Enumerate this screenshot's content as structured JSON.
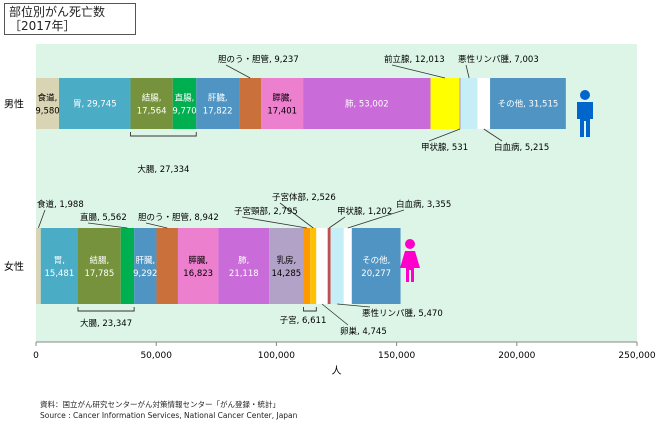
{
  "title": "部位別がん死亡数",
  "subtitle": "［2017年］",
  "source_line1": "資料：国立がん研究センターがん対策情報センター「がん登録・統計」",
  "source_line2": "Source : Cancer Information Services, National Cancer Center, Japan",
  "chart_data": {
    "type": "bar",
    "orientation": "horizontal",
    "stacked": true,
    "xlabel": "人",
    "xlim": [
      0,
      250000
    ],
    "xticks": [
      0,
      50000,
      100000,
      150000,
      200000,
      250000
    ],
    "xtick_labels": [
      "0",
      "50,000",
      "100,000",
      "150,000",
      "200,000",
      "250,000"
    ],
    "grid": false,
    "background_color": "#dcf5e6",
    "categories": [
      "男性",
      "女性"
    ],
    "series": [
      {
        "category": "男性",
        "segments": [
          {
            "label": "食道",
            "value": 9580,
            "value_text": "9,580",
            "color": "#d9d4b4"
          },
          {
            "label": "胃",
            "value": 29745,
            "value_text": "29,745",
            "color": "#4bacc6"
          },
          {
            "label": "結腸",
            "value": 17564,
            "value_text": "17,564",
            "color": "#76923c"
          },
          {
            "label": "直腸",
            "value": 9770,
            "value_text": "9,770",
            "color": "#00b050"
          },
          {
            "label": "肝臓",
            "value": 17822,
            "value_text": "17,822",
            "color": "#4f94c2"
          },
          {
            "label": "胆のう・胆管",
            "value": 9237,
            "value_text": "9,237",
            "color": "#c9703b"
          },
          {
            "label": "膵臓",
            "value": 17401,
            "value_text": "17,401",
            "color": "#ec7fce"
          },
          {
            "label": "肺",
            "value": 53002,
            "value_text": "53,002",
            "color": "#c96bd9"
          },
          {
            "label": "前立腺",
            "value": 12013,
            "value_text": "12,013",
            "color": "#ffff00"
          },
          {
            "label": "甲状腺",
            "value": 531,
            "value_text": "531",
            "color": "#b3a2c7"
          },
          {
            "label": "悪性リンパ腫",
            "value": 7003,
            "value_text": "7,003",
            "color": "#c5eef7"
          },
          {
            "label": "白血病",
            "value": 5215,
            "value_text": "5,215",
            "color": "#ffffff"
          },
          {
            "label": "その他",
            "value": 31515,
            "value_text": "31,515",
            "color": "#4f94c2"
          }
        ],
        "annotations": [
          {
            "text": "大腸, 27,334"
          }
        ]
      },
      {
        "category": "女性",
        "segments": [
          {
            "label": "食道",
            "value": 1988,
            "value_text": "1,988",
            "color": "#d9d4b4"
          },
          {
            "label": "胃",
            "value": 15481,
            "value_text": "15,481",
            "color": "#4bacc6"
          },
          {
            "label": "結腸",
            "value": 17785,
            "value_text": "17,785",
            "color": "#76923c"
          },
          {
            "label": "直腸",
            "value": 5562,
            "value_text": "5,562",
            "color": "#00b050"
          },
          {
            "label": "肝臓",
            "value": 9292,
            "value_text": "9,292",
            "color": "#4f94c2"
          },
          {
            "label": "胆のう・胆管",
            "value": 8942,
            "value_text": "8,942",
            "color": "#c9703b"
          },
          {
            "label": "膵臓",
            "value": 16823,
            "value_text": "16,823",
            "color": "#ec7fce"
          },
          {
            "label": "肺",
            "value": 21118,
            "value_text": "21,118",
            "color": "#c96bd9"
          },
          {
            "label": "乳房",
            "value": 14285,
            "value_text": "14,285",
            "color": "#b3a2c7"
          },
          {
            "label": "子宮頸部",
            "value": 2795,
            "value_text": "2,795",
            "color": "#ff9900"
          },
          {
            "label": "子宮体部",
            "value": 2526,
            "value_text": "2,526",
            "color": "#ffc000"
          },
          {
            "label": "卵巣",
            "value": 4745,
            "value_text": "4,745",
            "color": "#ffffff"
          },
          {
            "label": "甲状腺",
            "value": 1202,
            "value_text": "1,202",
            "color": "#c0504d"
          },
          {
            "label": "悪性リンパ腫",
            "value": 5470,
            "value_text": "5,470",
            "color": "#c5eef7"
          },
          {
            "label": "白血病",
            "value": 3355,
            "value_text": "3,355",
            "color": "#ffffff"
          },
          {
            "label": "その他",
            "value": 20277,
            "value_text": "20,277",
            "color": "#4f94c2"
          }
        ],
        "annotations": [
          {
            "text": "大腸, 23,347"
          },
          {
            "text": "子宮, 6,611"
          }
        ]
      }
    ],
    "icons": [
      {
        "name": "male-person-icon",
        "color": "#0066cc"
      },
      {
        "name": "female-person-icon",
        "color": "#ff00cc"
      }
    ]
  }
}
